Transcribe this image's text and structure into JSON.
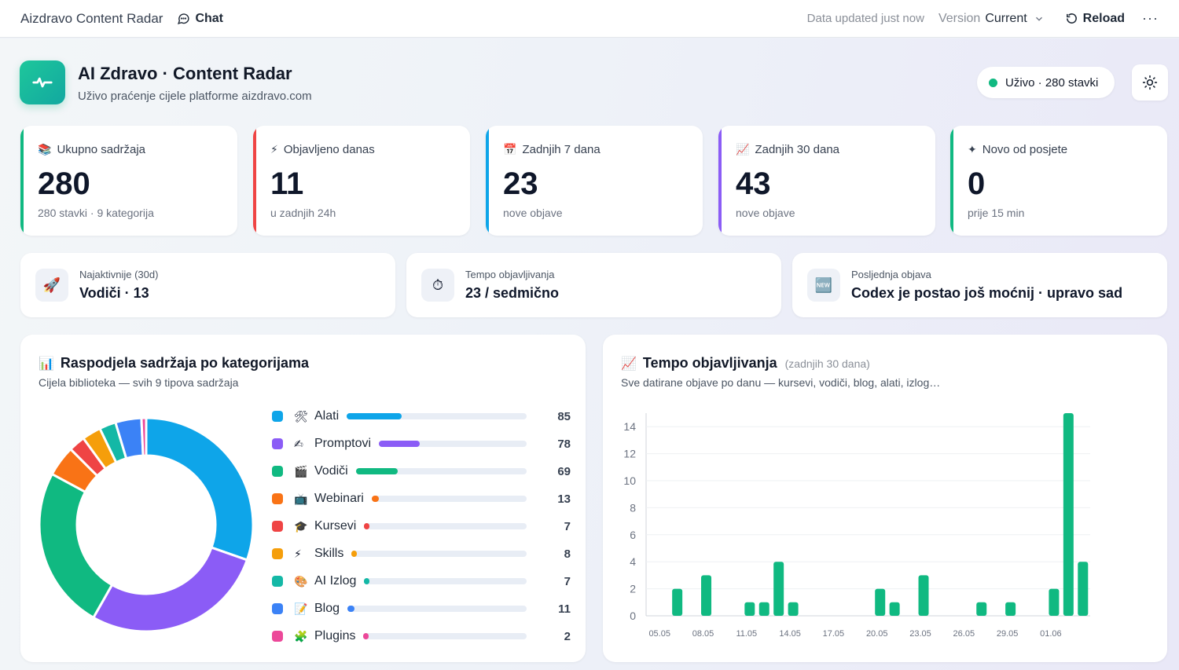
{
  "topbar": {
    "app_title": "Aizdravo Content Radar",
    "chat_label": "Chat",
    "updated": "Data updated just now",
    "version_label": "Version",
    "version_value": "Current",
    "reload_label": "Reload",
    "more_label": "···"
  },
  "header": {
    "title": "AI Zdravo · Content Radar",
    "subtitle": "Uživo praćenje cijele platforme aizdravo.com",
    "live_badge": "Uživo · 280 stavki"
  },
  "kpis": [
    {
      "icon": "📚",
      "label": "Ukupno sadržaja",
      "value": "280",
      "sub": "280 stavki · 9 kategorija",
      "color": "#10b981"
    },
    {
      "icon": "⚡",
      "label": "Objavljeno danas",
      "value": "11",
      "sub": "u zadnjih 24h",
      "color": "#ef4444"
    },
    {
      "icon": "📅",
      "label": "Zadnjih 7 dana",
      "value": "23",
      "sub": "nove objave",
      "color": "#0ea5e9"
    },
    {
      "icon": "📈",
      "label": "Zadnjih 30 dana",
      "value": "43",
      "sub": "nove objave",
      "color": "#8b5cf6"
    },
    {
      "icon": "✦",
      "label": "Novo od posjete",
      "value": "0",
      "sub": "prije 15 min",
      "color": "#10b981"
    }
  ],
  "info": [
    {
      "icon": "🚀",
      "caption": "Najaktivnije (30d)",
      "value": "Vodiči · 13"
    },
    {
      "icon": "⏱",
      "caption": "Tempo objavljivanja",
      "value": "23 / sedmično"
    },
    {
      "icon": "🆕",
      "caption": "Posljednja objava",
      "value": "Codex je postao još moćnij · upravo sad"
    }
  ],
  "distribution": {
    "icon": "📊",
    "title": "Raspodjela sadržaja po kategorijama",
    "subtitle": "Cijela biblioteka — svih 9 tipova sadržaja",
    "max_value": 280,
    "items": [
      {
        "icon": "🛠",
        "name": "Alati",
        "value": 85,
        "color": "#0ea5e9"
      },
      {
        "icon": "✍",
        "name": "Promptovi",
        "value": 78,
        "color": "#8b5cf6"
      },
      {
        "icon": "🎬",
        "name": "Vodiči",
        "value": 69,
        "color": "#10b981"
      },
      {
        "icon": "📺",
        "name": "Webinari",
        "value": 13,
        "color": "#f97316"
      },
      {
        "icon": "🎓",
        "name": "Kursevi",
        "value": 7,
        "color": "#ef4444"
      },
      {
        "icon": "⚡",
        "name": "Skills",
        "value": 8,
        "color": "#f59e0b"
      },
      {
        "icon": "🎨",
        "name": "AI Izlog",
        "value": 7,
        "color": "#14b8a6"
      },
      {
        "icon": "📝",
        "name": "Blog",
        "value": 11,
        "color": "#3b82f6"
      },
      {
        "icon": "🧩",
        "name": "Plugins",
        "value": 2,
        "color": "#ec4899"
      }
    ]
  },
  "tempo": {
    "icon": "📈",
    "title": "Tempo objavljivanja",
    "title_note": "(zadnjih 30 dana)",
    "subtitle": "Sve datirane objave po danu — kursevi, vodiči, blog, alati, izlog…"
  },
  "chart_data": {
    "type": "bar",
    "title": "Tempo objavljivanja",
    "xlabel": "",
    "ylabel": "",
    "ylim": [
      0,
      15
    ],
    "yticks": [
      0,
      2,
      4,
      6,
      8,
      10,
      12,
      14
    ],
    "x_tick_labels": [
      "05.05",
      "08.05",
      "11.05",
      "14.05",
      "17.05",
      "20.05",
      "23.05",
      "26.05",
      "29.05",
      "01.06"
    ],
    "categories": [
      "05.05",
      "06.05",
      "07.05",
      "08.05",
      "09.05",
      "10.05",
      "11.05",
      "12.05",
      "13.05",
      "14.05",
      "15.05",
      "16.05",
      "17.05",
      "18.05",
      "19.05",
      "20.05",
      "21.05",
      "22.05",
      "23.05",
      "24.05",
      "25.05",
      "26.05",
      "27.05",
      "28.05",
      "29.05",
      "30.05",
      "31.05",
      "01.06",
      "02.06",
      "03.06"
    ],
    "values": [
      0,
      2,
      0,
      3,
      0,
      0,
      1,
      1,
      4,
      1,
      0,
      0,
      0,
      0,
      0,
      2,
      1,
      0,
      3,
      0,
      0,
      0,
      1,
      0,
      1,
      0,
      0,
      2,
      15,
      4
    ],
    "color": "#10b981",
    "grid": "horizontal"
  }
}
